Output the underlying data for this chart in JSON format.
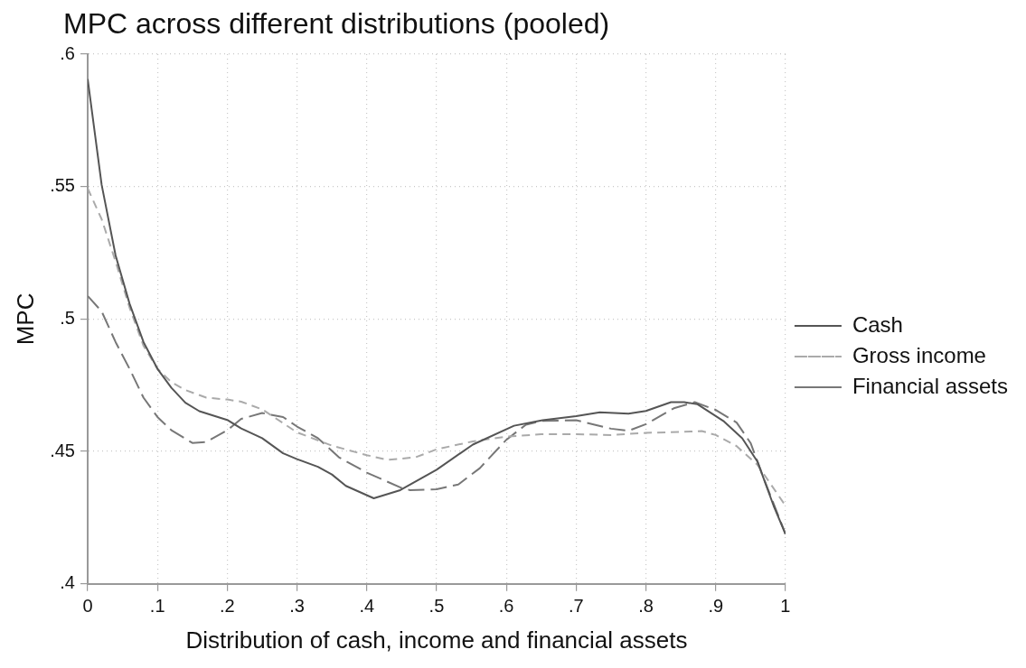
{
  "chart_data": {
    "type": "line",
    "title": "MPC across different distributions (pooled)",
    "xlabel": "Distribution of cash, income and financial assets",
    "ylabel": "MPC",
    "xlim": [
      0,
      1
    ],
    "ylim": [
      0.4,
      0.6
    ],
    "xticks": [
      0,
      {
        "value": 0.1,
        "label": ".1"
      },
      {
        "value": 0.2,
        "label": ".2"
      },
      {
        "value": 0.3,
        "label": ".3"
      },
      {
        "value": 0.4,
        "label": ".4"
      },
      {
        "value": 0.5,
        "label": ".5"
      },
      {
        "value": 0.6,
        "label": ".6"
      },
      {
        "value": 0.7,
        "label": ".7"
      },
      {
        "value": 0.8,
        "label": ".8"
      },
      {
        "value": 0.9,
        "label": ".9"
      },
      1
    ],
    "yticks": [
      {
        "value": 0.4,
        "label": ".4"
      },
      {
        "value": 0.45,
        "label": ".45"
      },
      {
        "value": 0.5,
        "label": ".5"
      },
      {
        "value": 0.55,
        "label": ".55"
      },
      {
        "value": 0.6,
        "label": ".6"
      }
    ],
    "grid": true,
    "legend": "right",
    "marker": "none",
    "series": [
      {
        "name": "Cash",
        "color": "#555555",
        "line_style": "solid",
        "x": [
          0,
          0.02,
          0.04,
          0.06,
          0.08,
          0.1,
          0.12,
          0.14,
          0.16,
          0.2,
          0.22,
          0.25,
          0.28,
          0.3,
          0.33,
          0.35,
          0.37,
          0.41,
          0.448,
          0.5,
          0.552,
          0.611,
          0.652,
          0.7,
          0.734,
          0.775,
          0.8,
          0.836,
          0.855,
          0.874,
          0.912,
          0.938,
          0.96,
          0.983,
          1
        ],
        "values": [
          0.5906,
          0.5507,
          0.524,
          0.5058,
          0.4913,
          0.4812,
          0.474,
          0.4684,
          0.4652,
          0.4619,
          0.4587,
          0.455,
          0.4493,
          0.4471,
          0.4442,
          0.4413,
          0.437,
          0.4323,
          0.4354,
          0.4431,
          0.4526,
          0.4597,
          0.4618,
          0.4633,
          0.4648,
          0.4643,
          0.4653,
          0.4686,
          0.4686,
          0.4678,
          0.4613,
          0.455,
          0.4461,
          0.4295,
          0.4188
        ]
      },
      {
        "name": "Gross income",
        "color": "#aaaaaa",
        "line_style": "dashed",
        "x": [
          0,
          0.02,
          0.04,
          0.06,
          0.08,
          0.1,
          0.12,
          0.14,
          0.17,
          0.2,
          0.22,
          0.25,
          0.3,
          0.35,
          0.4,
          0.43,
          0.47,
          0.5,
          0.552,
          0.6,
          0.65,
          0.7,
          0.75,
          0.8,
          0.85,
          0.88,
          0.9,
          0.93,
          0.96,
          1
        ],
        "values": [
          0.5493,
          0.5377,
          0.5217,
          0.5043,
          0.4899,
          0.4812,
          0.4761,
          0.4732,
          0.4703,
          0.4696,
          0.4688,
          0.4659,
          0.4572,
          0.4522,
          0.4486,
          0.4468,
          0.4478,
          0.4508,
          0.4538,
          0.4556,
          0.4565,
          0.4565,
          0.4562,
          0.457,
          0.4574,
          0.4577,
          0.4562,
          0.452,
          0.4449,
          0.4295
        ]
      },
      {
        "name": "Financial assets",
        "color": "#777777",
        "line_style": "longdash",
        "x": [
          0,
          0.02,
          0.04,
          0.06,
          0.08,
          0.1,
          0.12,
          0.15,
          0.17,
          0.2,
          0.22,
          0.25,
          0.28,
          0.3,
          0.33,
          0.36,
          0.4,
          0.45,
          0.462,
          0.5,
          0.531,
          0.562,
          0.6,
          0.628,
          0.65,
          0.7,
          0.75,
          0.775,
          0.8,
          0.84,
          0.87,
          0.9,
          0.93,
          0.95,
          0.97,
          1
        ],
        "values": [
          0.5087,
          0.5029,
          0.4913,
          0.4812,
          0.4703,
          0.463,
          0.458,
          0.4532,
          0.4536,
          0.458,
          0.4623,
          0.4645,
          0.463,
          0.4594,
          0.455,
          0.4478,
          0.442,
          0.4362,
          0.4354,
          0.4357,
          0.4375,
          0.4437,
          0.4544,
          0.4601,
          0.4615,
          0.4618,
          0.4586,
          0.4578,
          0.4603,
          0.4663,
          0.4686,
          0.4657,
          0.4609,
          0.4532,
          0.439,
          0.4188
        ]
      }
    ]
  }
}
